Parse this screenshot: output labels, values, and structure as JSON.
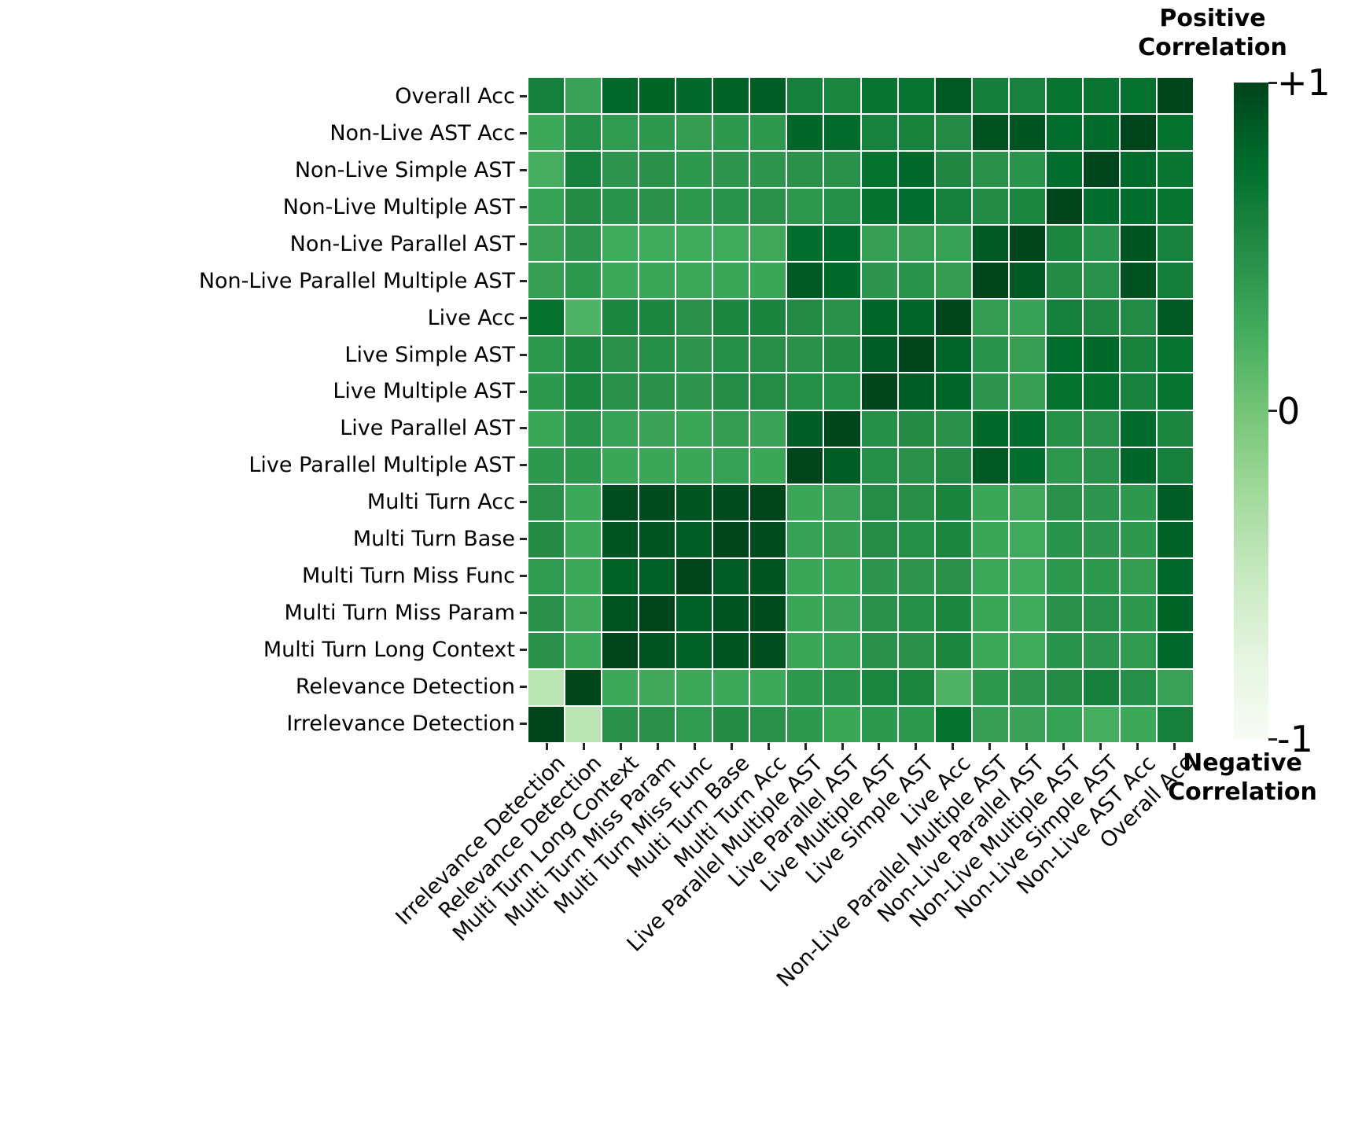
{
  "figure": {
    "colorbar": {
      "title_top_lines": [
        "Positive",
        "Correlation"
      ],
      "title_bottom_lines": [
        "Negative",
        "Correlation"
      ],
      "ticks": [
        {
          "label": "+1",
          "value": 1
        },
        {
          "label": "0",
          "value": 0
        },
        {
          "label": "-1",
          "value": -1
        }
      ]
    }
  },
  "chart_data": {
    "type": "heatmap",
    "title": "",
    "row_labels": [
      "Overall Acc",
      "Non-Live AST Acc",
      "Non-Live Simple AST",
      "Non-Live Multiple AST",
      "Non-Live Parallel AST",
      "Non-Live Parallel Multiple AST",
      "Live Acc",
      "Live Simple AST",
      "Live Multiple AST",
      "Live Parallel AST",
      "Live Parallel Multiple AST",
      "Multi Turn Acc",
      "Multi Turn Base",
      "Multi Turn Miss Func",
      "Multi Turn Miss Param",
      "Multi Turn Long Context",
      "Relevance Detection",
      "Irrelevance Detection"
    ],
    "col_labels": [
      "Irrelevance Detection",
      "Relevance Detection",
      "Multi Turn Long Context",
      "Multi Turn Miss Param",
      "Multi Turn Miss Func",
      "Multi Turn Base",
      "Multi Turn Acc",
      "Live Parallel Multiple AST",
      "Live Parallel AST",
      "Live Multiple AST",
      "Live Simple AST",
      "Live Acc",
      "Non-Live Parallel Multiple AST",
      "Non-Live Parallel AST",
      "Non-Live Multiple AST",
      "Non-Live Simple AST",
      "Non-Live AST Acc",
      "Overall Acc"
    ],
    "matrix_axes": "matrix[a][b] = correlation(row_labels[a], row_labels[b]); displayed columns follow col_labels (reversed row order)",
    "matrix": [
      [
        1.0,
        0.72,
        0.68,
        0.7,
        0.58,
        0.61,
        0.88,
        0.7,
        0.7,
        0.55,
        0.6,
        0.85,
        0.82,
        0.78,
        0.81,
        0.78,
        0.32,
        0.6
      ],
      [
        0.72,
        1.0,
        0.76,
        0.74,
        0.9,
        0.91,
        0.5,
        0.57,
        0.58,
        0.76,
        0.79,
        0.4,
        0.4,
        0.36,
        0.4,
        0.38,
        0.48,
        0.28
      ],
      [
        0.68,
        0.76,
        1.0,
        0.74,
        0.44,
        0.46,
        0.53,
        0.77,
        0.71,
        0.45,
        0.45,
        0.42,
        0.42,
        0.4,
        0.45,
        0.42,
        0.59,
        0.22
      ],
      [
        0.7,
        0.74,
        0.74,
        1.0,
        0.55,
        0.5,
        0.6,
        0.75,
        0.72,
        0.48,
        0.41,
        0.46,
        0.44,
        0.4,
        0.45,
        0.43,
        0.5,
        0.33
      ],
      [
        0.58,
        0.9,
        0.44,
        0.55,
        1.0,
        0.88,
        0.33,
        0.35,
        0.34,
        0.75,
        0.74,
        0.27,
        0.26,
        0.25,
        0.26,
        0.25,
        0.42,
        0.31
      ],
      [
        0.61,
        0.91,
        0.46,
        0.5,
        0.88,
        1.0,
        0.37,
        0.43,
        0.42,
        0.77,
        0.88,
        0.3,
        0.3,
        0.29,
        0.3,
        0.28,
        0.4,
        0.34
      ],
      [
        0.88,
        0.5,
        0.53,
        0.6,
        0.33,
        0.37,
        1.0,
        0.8,
        0.8,
        0.45,
        0.5,
        0.56,
        0.55,
        0.46,
        0.55,
        0.55,
        0.18,
        0.72
      ],
      [
        0.7,
        0.57,
        0.77,
        0.75,
        0.35,
        0.43,
        0.8,
        1.0,
        0.86,
        0.5,
        0.45,
        0.47,
        0.48,
        0.42,
        0.48,
        0.45,
        0.55,
        0.4
      ],
      [
        0.7,
        0.58,
        0.71,
        0.72,
        0.34,
        0.42,
        0.8,
        0.86,
        1.0,
        0.48,
        0.48,
        0.49,
        0.49,
        0.42,
        0.45,
        0.45,
        0.55,
        0.4
      ],
      [
        0.55,
        0.76,
        0.45,
        0.48,
        0.75,
        0.77,
        0.45,
        0.5,
        0.48,
        1.0,
        0.85,
        0.32,
        0.36,
        0.3,
        0.31,
        0.33,
        0.44,
        0.3
      ],
      [
        0.6,
        0.79,
        0.45,
        0.41,
        0.74,
        0.88,
        0.5,
        0.45,
        0.48,
        0.85,
        1.0,
        0.3,
        0.33,
        0.3,
        0.3,
        0.3,
        0.4,
        0.4
      ],
      [
        0.85,
        0.4,
        0.42,
        0.46,
        0.27,
        0.3,
        0.56,
        0.47,
        0.49,
        0.32,
        0.3,
        1.0,
        0.95,
        0.9,
        0.95,
        0.94,
        0.28,
        0.46
      ],
      [
        0.82,
        0.4,
        0.42,
        0.44,
        0.26,
        0.3,
        0.55,
        0.48,
        0.49,
        0.36,
        0.33,
        0.95,
        1.0,
        0.86,
        0.9,
        0.9,
        0.28,
        0.5
      ],
      [
        0.78,
        0.36,
        0.4,
        0.4,
        0.25,
        0.29,
        0.46,
        0.42,
        0.42,
        0.3,
        0.3,
        0.9,
        0.86,
        1.0,
        0.83,
        0.82,
        0.28,
        0.38
      ],
      [
        0.81,
        0.4,
        0.45,
        0.45,
        0.26,
        0.3,
        0.55,
        0.48,
        0.45,
        0.31,
        0.3,
        0.95,
        0.9,
        0.83,
        1.0,
        0.9,
        0.27,
        0.46
      ],
      [
        0.78,
        0.38,
        0.42,
        0.43,
        0.25,
        0.28,
        0.55,
        0.45,
        0.45,
        0.33,
        0.3,
        0.94,
        0.9,
        0.82,
        0.9,
        1.0,
        0.28,
        0.45
      ],
      [
        0.32,
        0.48,
        0.59,
        0.5,
        0.42,
        0.4,
        0.18,
        0.55,
        0.55,
        0.44,
        0.4,
        0.28,
        0.28,
        0.28,
        0.27,
        0.28,
        1.0,
        -0.42
      ],
      [
        0.6,
        0.28,
        0.22,
        0.33,
        0.31,
        0.34,
        0.72,
        0.4,
        0.4,
        0.3,
        0.4,
        0.46,
        0.5,
        0.38,
        0.46,
        0.45,
        -0.42,
        1.0
      ]
    ],
    "value_range": [
      -1,
      1
    ],
    "colormap": {
      "name": "Greens",
      "stops": [
        "#f7fcf5",
        "#e5f5e0",
        "#c7e9c0",
        "#a1d99b",
        "#74c476",
        "#41ab5d",
        "#238b45",
        "#006d2c",
        "#00441b"
      ]
    },
    "grid_line_color": "#ffffff",
    "legend_position": "right"
  }
}
